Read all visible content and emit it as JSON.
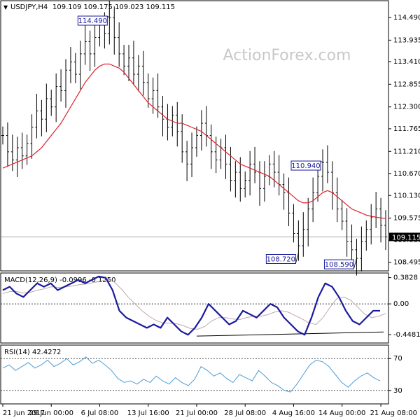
{
  "header": {
    "symbol": "USDJPY,H4",
    "ohlc": "109.109 109.175 109.023 109.115"
  },
  "watermark": "ActionForex.com",
  "colors": {
    "price_bar": "#000000",
    "ma": "#e0202a",
    "macd": "#1a1a9e",
    "signal": "#c0a8a8",
    "rsi": "#4a9cd8",
    "background": "#ffffff"
  },
  "chart_data": [
    {
      "type": "line",
      "panel": "price",
      "ylim": [
        108.3,
        114.85
      ],
      "y_ticks": [
        "114.490",
        "113.935",
        "113.410",
        "112.855",
        "112.300",
        "111.765",
        "111.210",
        "110.670",
        "110.130",
        "109.575",
        "109.035",
        "108.495"
      ],
      "y_tick_values": [
        114.49,
        113.935,
        113.41,
        112.855,
        112.3,
        111.765,
        111.21,
        110.67,
        110.13,
        109.575,
        109.035,
        108.495
      ],
      "current_price": "109.115",
      "current_price_value": 109.115,
      "series": [
        {
          "values": [
            111.6,
            111.2,
            111.0,
            111.3,
            111.1,
            111.4,
            111.8,
            112.2,
            112.0,
            112.5,
            112.3,
            112.8,
            112.7,
            113.2,
            113.4,
            113.1,
            113.6,
            113.9,
            113.6,
            114.0,
            114.3,
            114.1,
            114.49,
            114.0,
            113.6,
            113.3,
            113.5,
            113.1,
            113.3,
            112.9,
            112.5,
            112.7,
            112.3,
            112.0,
            111.8,
            112.1,
            111.7,
            111.2,
            110.9,
            111.3,
            111.6,
            111.9,
            111.6,
            111.2,
            111.0,
            111.3,
            110.9,
            110.5,
            110.7,
            110.3,
            110.5,
            110.9,
            110.7,
            110.3,
            110.6,
            110.9,
            110.7,
            110.4,
            110.2,
            109.7,
            109.2,
            108.9,
            109.3,
            109.8,
            110.2,
            110.6,
            110.94,
            110.7,
            110.2,
            109.8,
            109.5,
            109.0,
            108.8,
            108.59,
            109.0,
            109.3,
            109.6,
            109.8,
            109.4,
            109.115
          ]
        },
        {
          "values": [
            110.8,
            110.85,
            110.9,
            110.95,
            111.0,
            111.05,
            111.1,
            111.2,
            111.3,
            111.45,
            111.6,
            111.75,
            111.9,
            112.1,
            112.3,
            112.5,
            112.7,
            112.9,
            113.05,
            113.2,
            113.3,
            113.35,
            113.35,
            113.3,
            113.25,
            113.15,
            113.0,
            112.85,
            112.7,
            112.55,
            112.4,
            112.3,
            112.2,
            112.1,
            112.0,
            111.95,
            111.9,
            111.9,
            111.85,
            111.8,
            111.75,
            111.7,
            111.6,
            111.5,
            111.4,
            111.3,
            111.2,
            111.1,
            111.0,
            110.9,
            110.85,
            110.8,
            110.75,
            110.7,
            110.65,
            110.6,
            110.5,
            110.4,
            110.3,
            110.2,
            110.1,
            110.0,
            109.95,
            109.95,
            110.0,
            110.1,
            110.2,
            110.25,
            110.2,
            110.1,
            110.0,
            109.9,
            109.8,
            109.75,
            109.7,
            109.65,
            109.62,
            109.6,
            109.58,
            109.57
          ]
        }
      ],
      "annotations": [
        {
          "label": "114.490",
          "value": 114.49,
          "index": 22
        },
        {
          "label": "110.940",
          "value": 110.94,
          "index": 66
        },
        {
          "label": "108.720",
          "value": 108.72,
          "index": 61
        },
        {
          "label": "108.590",
          "value": 108.59,
          "index": 73
        }
      ]
    },
    {
      "type": "line",
      "panel": "macd",
      "title": "MACD(12,26,9) -0.0996 -0.1250",
      "ylim": [
        -0.56,
        0.44
      ],
      "y_ticks": [
        "0.3828",
        "0.00",
        "-0.4481"
      ],
      "y_tick_values": [
        0.3828,
        0.0,
        -0.4481
      ],
      "series": [
        {
          "values": [
            0.2,
            0.25,
            0.15,
            0.1,
            0.2,
            0.3,
            0.25,
            0.3,
            0.2,
            0.25,
            0.3,
            0.35,
            0.3,
            0.35,
            0.4,
            0.38,
            0.2,
            -0.1,
            -0.2,
            -0.25,
            -0.3,
            -0.35,
            -0.3,
            -0.35,
            -0.2,
            -0.3,
            -0.4,
            -0.45,
            -0.35,
            -0.2,
            0.0,
            -0.1,
            -0.2,
            -0.3,
            -0.25,
            -0.1,
            -0.15,
            -0.2,
            -0.1,
            0.0,
            -0.05,
            -0.2,
            -0.3,
            -0.4,
            -0.45,
            -0.2,
            0.1,
            0.3,
            0.25,
            0.1,
            -0.1,
            -0.25,
            -0.3,
            -0.2,
            -0.1,
            -0.1
          ]
        },
        {
          "values": [
            0.15,
            0.18,
            0.18,
            0.16,
            0.17,
            0.2,
            0.22,
            0.25,
            0.24,
            0.25,
            0.26,
            0.28,
            0.29,
            0.31,
            0.33,
            0.35,
            0.32,
            0.22,
            0.1,
            0.0,
            -0.1,
            -0.18,
            -0.24,
            -0.28,
            -0.28,
            -0.29,
            -0.32,
            -0.36,
            -0.37,
            -0.33,
            -0.25,
            -0.2,
            -0.2,
            -0.22,
            -0.23,
            -0.2,
            -0.18,
            -0.18,
            -0.16,
            -0.12,
            -0.1,
            -0.12,
            -0.17,
            -0.22,
            -0.28,
            -0.3,
            -0.2,
            -0.05,
            0.08,
            0.1,
            0.05,
            -0.05,
            -0.15,
            -0.2,
            -0.18,
            -0.14
          ]
        }
      ]
    },
    {
      "type": "line",
      "panel": "rsi",
      "title": "RSI(14) 42.4272",
      "ylim": [
        14,
        86
      ],
      "y_ticks": [
        "70",
        "30"
      ],
      "y_tick_values": [
        70,
        30
      ],
      "series": [
        {
          "values": [
            58,
            62,
            55,
            60,
            65,
            58,
            62,
            68,
            60,
            64,
            70,
            62,
            66,
            72,
            64,
            68,
            62,
            55,
            45,
            40,
            42,
            38,
            44,
            40,
            48,
            42,
            38,
            46,
            40,
            36,
            44,
            60,
            55,
            48,
            52,
            45,
            40,
            50,
            46,
            42,
            55,
            48,
            40,
            36,
            30,
            28,
            38,
            50,
            62,
            68,
            66,
            60,
            50,
            40,
            34,
            42,
            48,
            52,
            46,
            42
          ]
        }
      ]
    }
  ],
  "x_axis": {
    "labels": [
      "21 Jun 2017",
      "29 Jun 00:00",
      "6 Jul 08:00",
      "13 Jul 16:00",
      "21 Jul 00:00",
      "28 Jul 08:00",
      "4 Aug 16:00",
      "14 Aug 00:00",
      "21 Aug 08:00"
    ],
    "positions_index": [
      0,
      10,
      20,
      30,
      40,
      50,
      60,
      70,
      78
    ]
  }
}
